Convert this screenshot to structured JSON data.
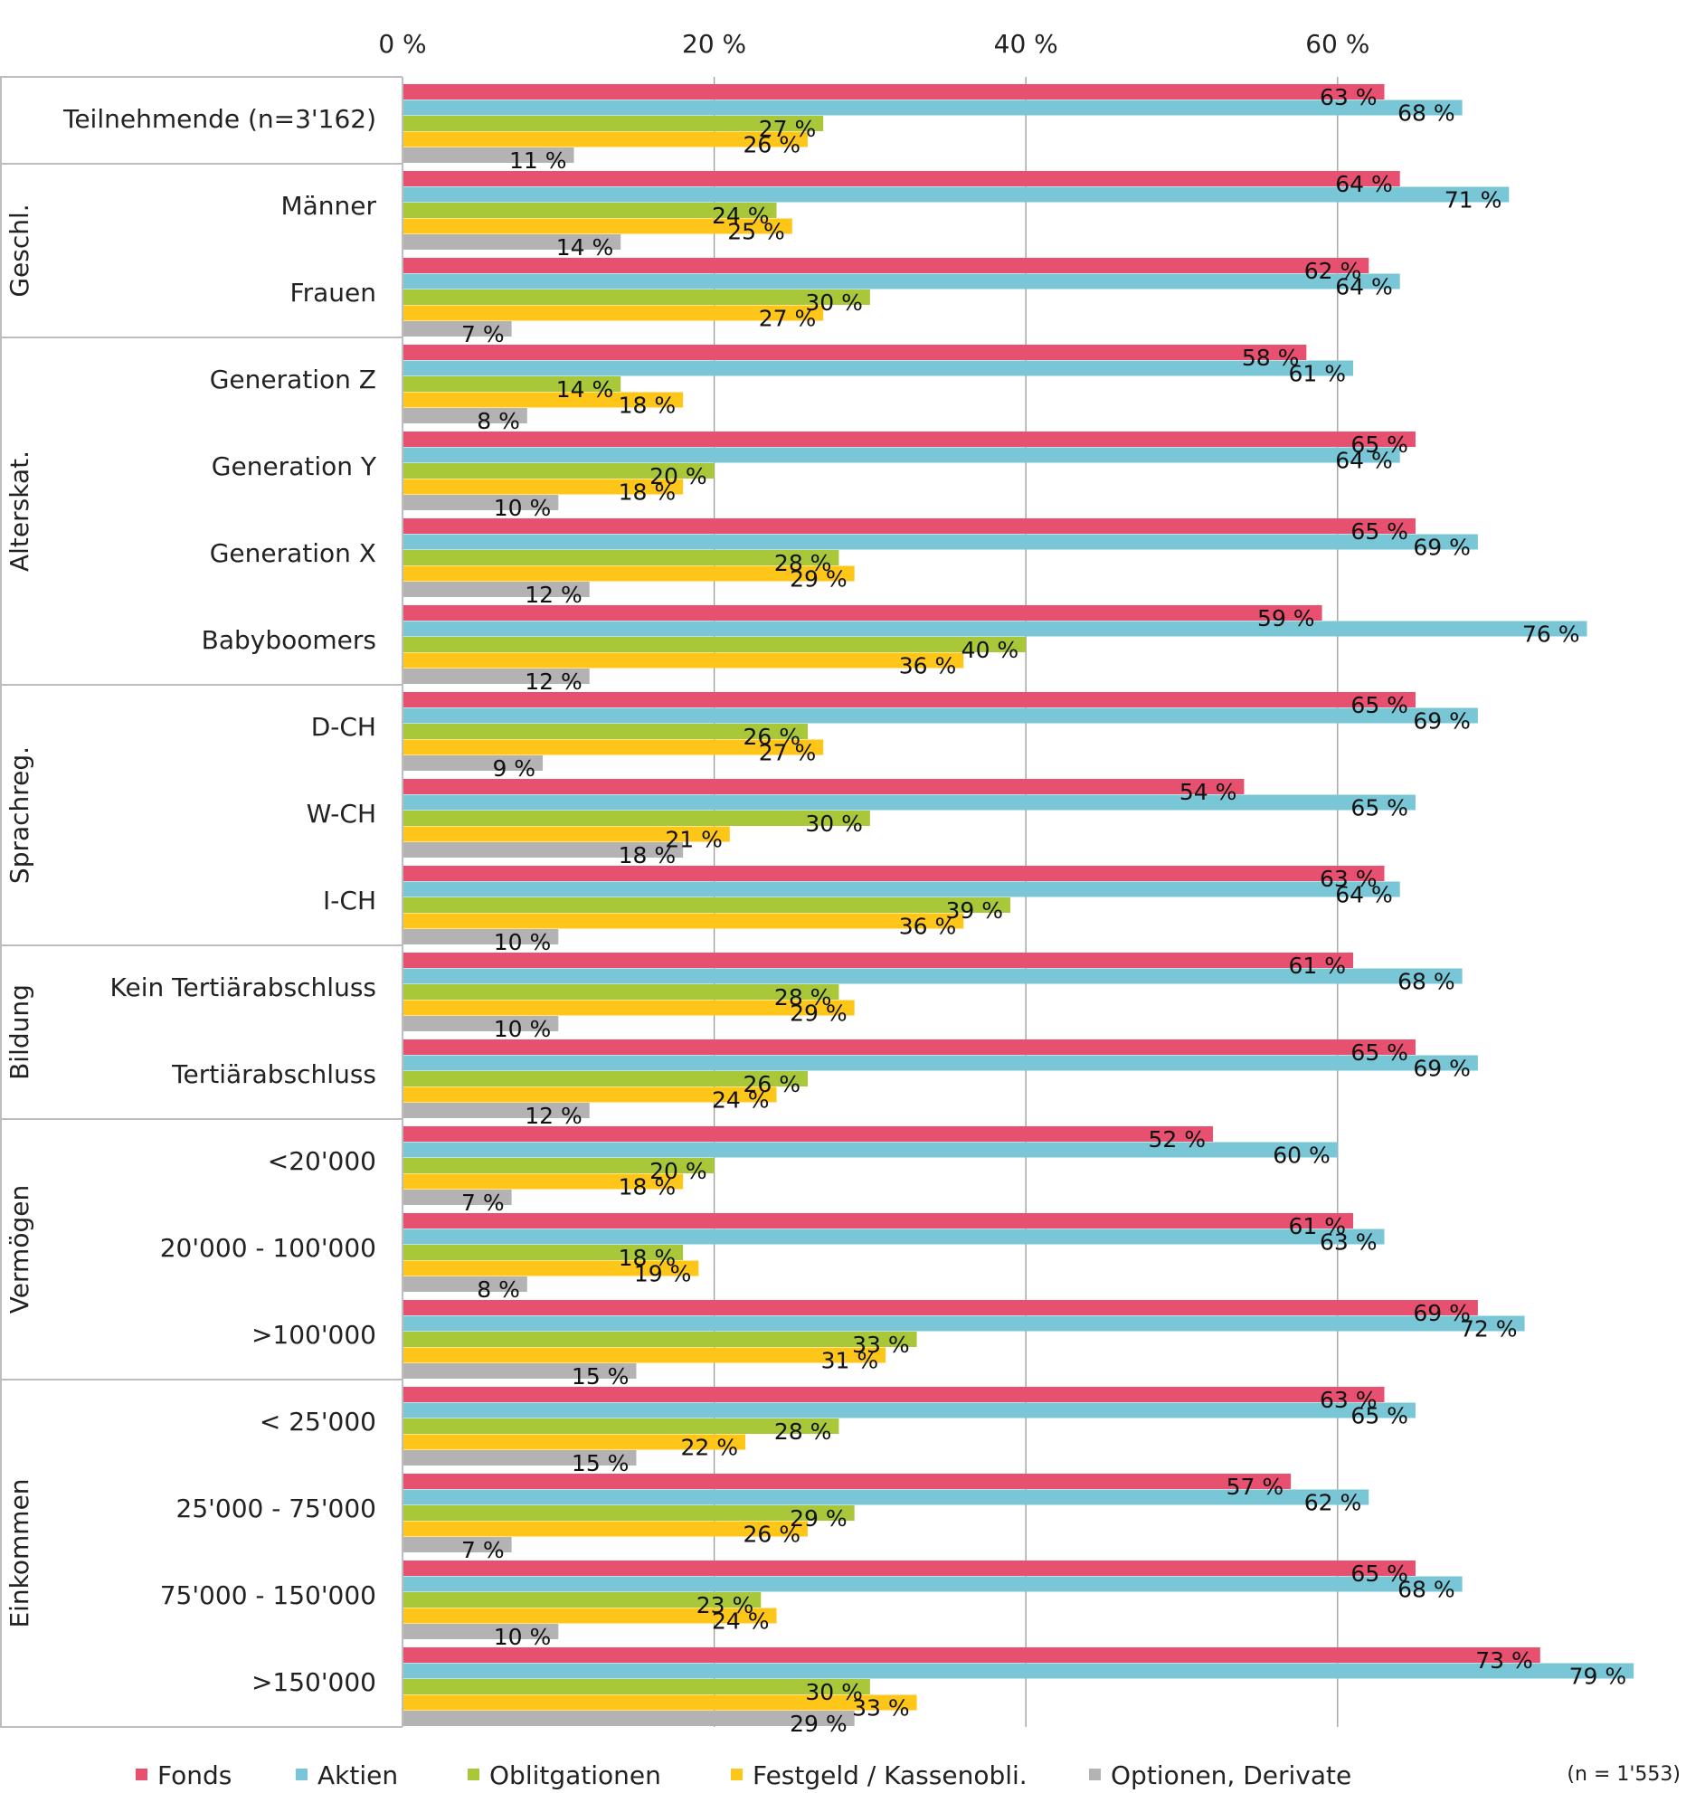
{
  "chart_data": {
    "type": "bar",
    "orientation": "horizontal",
    "title": "",
    "xlim": [
      0,
      80
    ],
    "x_ticks": [
      "0 %",
      "20 %",
      "40 %",
      "60 %"
    ],
    "x_tick_values": [
      0,
      20,
      40,
      60
    ],
    "grid": true,
    "legend_position": "bottom",
    "note": "(n = 1'553)",
    "series": [
      {
        "name": "Fonds",
        "color": "#e8506f"
      },
      {
        "name": "Aktien",
        "color": "#78c6d6"
      },
      {
        "name": "Oblitgationen",
        "color": "#a8c83a"
      },
      {
        "name": "Festgeld / Kassenobli.",
        "color": "#ffc61a"
      },
      {
        "name": "Optionen, Derivate",
        "color": "#b3b3b3"
      }
    ],
    "groups": [
      {
        "label": "",
        "rows": [
          {
            "label": "Teilnehmende (n=3'162)",
            "values": [
              63,
              68,
              27,
              26,
              11
            ]
          }
        ]
      },
      {
        "label": "Geschl.",
        "rows": [
          {
            "label": "Männer",
            "values": [
              64,
              71,
              24,
              25,
              14
            ]
          },
          {
            "label": "Frauen",
            "values": [
              62,
              64,
              30,
              27,
              7
            ]
          }
        ]
      },
      {
        "label": "Alterskat.",
        "rows": [
          {
            "label": "Generation Z",
            "values": [
              58,
              61,
              14,
              18,
              8
            ]
          },
          {
            "label": "Generation Y",
            "values": [
              65,
              64,
              20,
              18,
              10
            ]
          },
          {
            "label": "Generation X",
            "values": [
              65,
              69,
              28,
              29,
              12
            ]
          },
          {
            "label": "Babyboomers",
            "values": [
              59,
              76,
              40,
              36,
              12
            ]
          }
        ]
      },
      {
        "label": "Sprachreg.",
        "rows": [
          {
            "label": "D-CH",
            "values": [
              65,
              69,
              26,
              27,
              9
            ]
          },
          {
            "label": "W-CH",
            "values": [
              54,
              65,
              30,
              21,
              18
            ]
          },
          {
            "label": "I-CH",
            "values": [
              63,
              64,
              39,
              36,
              10
            ]
          }
        ]
      },
      {
        "label": "Bildung",
        "rows": [
          {
            "label": "Kein Tertiärabschluss",
            "values": [
              61,
              68,
              28,
              29,
              10
            ]
          },
          {
            "label": "Tertiärabschluss",
            "values": [
              65,
              69,
              26,
              24,
              12
            ]
          }
        ]
      },
      {
        "label": "Vermögen",
        "rows": [
          {
            "label": "<20'000",
            "values": [
              52,
              60,
              20,
              18,
              7
            ]
          },
          {
            "label": "20'000 - 100'000",
            "values": [
              61,
              63,
              18,
              19,
              8
            ]
          },
          {
            "label": ">100'000",
            "values": [
              69,
              72,
              33,
              31,
              15
            ]
          }
        ]
      },
      {
        "label": "Einkommen",
        "rows": [
          {
            "label": "< 25'000",
            "values": [
              63,
              65,
              28,
              22,
              15
            ]
          },
          {
            "label": "25'000 - 75'000",
            "values": [
              57,
              62,
              29,
              26,
              7
            ]
          },
          {
            "label": "75'000 - 150'000",
            "values": [
              65,
              68,
              23,
              24,
              10
            ]
          },
          {
            "label": ">150'000",
            "values": [
              73,
              79,
              30,
              33,
              29
            ]
          }
        ]
      }
    ]
  }
}
